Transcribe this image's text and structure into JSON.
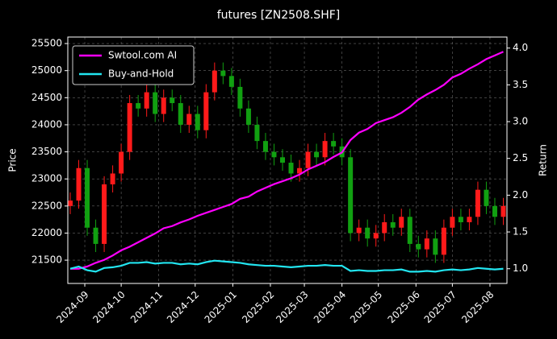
{
  "chart_data": {
    "type": "candlestick",
    "title": "futures [ZN2508.SHF]",
    "y_label": "Price",
    "y2_label": "Return",
    "x": [
      -12,
      -5,
      2,
      9,
      16,
      23,
      30,
      37,
      44,
      51,
      58,
      65,
      72,
      79,
      86,
      93,
      100,
      107,
      114,
      121,
      128,
      135,
      142,
      149,
      156,
      163,
      170,
      177,
      184,
      191,
      198,
      205,
      212,
      219,
      226,
      233,
      240,
      247,
      254,
      261,
      268,
      275,
      282,
      289,
      296,
      303,
      310,
      317,
      324,
      331,
      338,
      345
    ],
    "open": [
      22500,
      22600,
      23200,
      22100,
      21800,
      22900,
      23100,
      23500,
      24400,
      24300,
      24600,
      24200,
      24500,
      24400,
      24000,
      24200,
      23900,
      24600,
      25000,
      24900,
      24700,
      24300,
      24000,
      23700,
      23500,
      23400,
      23300,
      23100,
      23200,
      23500,
      23400,
      23700,
      23600,
      23400,
      22000,
      22100,
      21900,
      22000,
      22200,
      22100,
      22300,
      21800,
      21700,
      21900,
      21600,
      22100,
      22300,
      22200,
      22300,
      22800,
      22500,
      22300
    ],
    "high": [
      22750,
      23350,
      23350,
      22250,
      23050,
      23250,
      23650,
      24550,
      24550,
      24750,
      24750,
      24650,
      24650,
      24550,
      24350,
      24350,
      24750,
      25150,
      25150,
      25050,
      24850,
      24450,
      24150,
      23850,
      23650,
      23550,
      23450,
      23350,
      23650,
      23650,
      23850,
      23850,
      23750,
      23550,
      22250,
      22250,
      22150,
      22350,
      22350,
      22450,
      22450,
      21950,
      22050,
      22050,
      22250,
      22450,
      22450,
      22450,
      22950,
      22950,
      22650,
      22650
    ],
    "low": [
      22350,
      22450,
      21950,
      21650,
      21650,
      22750,
      22950,
      23350,
      24150,
      24150,
      24050,
      24050,
      24250,
      23850,
      23850,
      23750,
      23750,
      24450,
      24750,
      24550,
      24150,
      23850,
      23550,
      23350,
      23250,
      23150,
      22950,
      22950,
      23050,
      23250,
      23250,
      23450,
      23250,
      21850,
      21850,
      21750,
      21750,
      21850,
      21950,
      21950,
      21650,
      21550,
      21550,
      21450,
      21450,
      21950,
      22050,
      22050,
      22150,
      22350,
      22150,
      22150
    ],
    "close": [
      22600,
      23200,
      22100,
      21800,
      22900,
      23100,
      23500,
      24400,
      24300,
      24600,
      24200,
      24500,
      24400,
      24000,
      24200,
      23900,
      24600,
      25000,
      24900,
      24700,
      24300,
      24000,
      23700,
      23500,
      23400,
      23300,
      23100,
      23200,
      23500,
      23400,
      23700,
      23600,
      23400,
      22000,
      22100,
      21900,
      22000,
      22200,
      22100,
      22300,
      21800,
      21700,
      21900,
      21600,
      22100,
      22300,
      22200,
      22300,
      22800,
      22500,
      22300,
      22500
    ],
    "up_color": "#ff1a1a",
    "down_color": "#11a011",
    "series": [
      {
        "name": "Swtool.com AI",
        "color": "#ff00ff",
        "axis": "y2",
        "values": [
          1.0,
          1.0,
          1.03,
          1.08,
          1.12,
          1.18,
          1.25,
          1.3,
          1.36,
          1.42,
          1.48,
          1.55,
          1.58,
          1.63,
          1.67,
          1.72,
          1.76,
          1.8,
          1.84,
          1.88,
          1.95,
          1.98,
          2.05,
          2.1,
          2.15,
          2.19,
          2.23,
          2.28,
          2.35,
          2.4,
          2.45,
          2.52,
          2.58,
          2.75,
          2.85,
          2.9,
          2.98,
          3.02,
          3.06,
          3.12,
          3.2,
          3.3,
          3.37,
          3.43,
          3.5,
          3.6,
          3.65,
          3.72,
          3.78,
          3.85,
          3.9,
          3.95
        ]
      },
      {
        "name": "Buy-and-Hold",
        "color": "#22e5f0",
        "axis": "y2",
        "values": [
          1.0,
          1.03,
          0.98,
          0.96,
          1.01,
          1.02,
          1.04,
          1.08,
          1.08,
          1.09,
          1.07,
          1.08,
          1.08,
          1.06,
          1.07,
          1.06,
          1.09,
          1.11,
          1.1,
          1.09,
          1.08,
          1.06,
          1.05,
          1.04,
          1.04,
          1.03,
          1.02,
          1.03,
          1.04,
          1.04,
          1.05,
          1.04,
          1.04,
          0.97,
          0.98,
          0.97,
          0.97,
          0.98,
          0.98,
          0.99,
          0.96,
          0.96,
          0.97,
          0.96,
          0.98,
          0.99,
          0.98,
          0.99,
          1.01,
          1.0,
          0.99,
          1.0
        ]
      }
    ],
    "xlim": [
      -14,
      348
    ],
    "xticks": [
      {
        "value": 0,
        "label": "2024-09"
      },
      {
        "value": 30,
        "label": "2024-10"
      },
      {
        "value": 61,
        "label": "2024-11"
      },
      {
        "value": 91,
        "label": "2024-12"
      },
      {
        "value": 122,
        "label": "2025-01"
      },
      {
        "value": 153,
        "label": "2025-02"
      },
      {
        "value": 181,
        "label": "2025-03"
      },
      {
        "value": 212,
        "label": "2025-04"
      },
      {
        "value": 242,
        "label": "2025-05"
      },
      {
        "value": 273,
        "label": "2025-06"
      },
      {
        "value": 303,
        "label": "2025-07"
      },
      {
        "value": 334,
        "label": "2025-08"
      }
    ],
    "ylim": [
      21070,
      25620
    ],
    "yticks": [
      21500,
      22000,
      22500,
      23000,
      23500,
      24000,
      24500,
      25000,
      25500
    ],
    "y2lim": [
      0.8,
      4.15
    ],
    "y2ticks": [
      {
        "value": 1,
        "label": "1.0"
      },
      {
        "value": 1.5,
        "label": "1.5"
      },
      {
        "value": 2,
        "label": "2.0"
      },
      {
        "value": 2.5,
        "label": "2.5"
      },
      {
        "value": 3,
        "label": "3.0"
      },
      {
        "value": 3.5,
        "label": "3.5"
      },
      {
        "value": 4,
        "label": "4.0"
      }
    ],
    "grid": true,
    "legend": "upper left"
  }
}
